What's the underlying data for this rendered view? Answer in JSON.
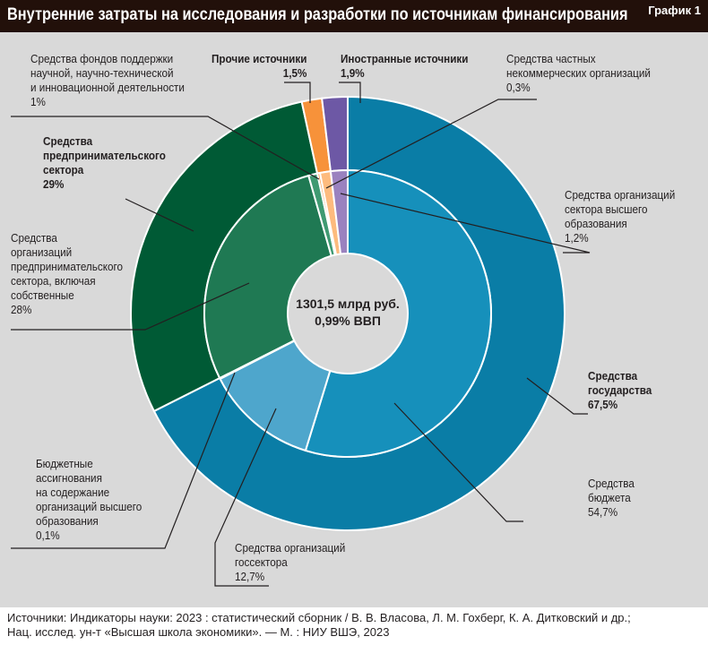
{
  "header": {
    "title": "Внутренние затраты на исследования и разработки по источникам финансирования",
    "graph_label": "График 1"
  },
  "chart_data": {
    "type": "pie",
    "center_label": [
      "1301,5 млрд руб.",
      "0,99% ВВП"
    ],
    "outer": [
      {
        "name": "Средства государства",
        "value": 67.5,
        "label": "67,5%",
        "color": "#0a7da6"
      },
      {
        "name": "Средства предпринимательского сектора",
        "value": 29,
        "label": "29%",
        "color": "#005a35"
      },
      {
        "name": "Прочие источники",
        "value": 1.5,
        "label": "1,5%",
        "color": "#f7923a"
      },
      {
        "name": "Иностранные источники",
        "value": 1.9,
        "label": "1,9%",
        "color": "#6d58a5"
      }
    ],
    "inner": [
      {
        "name": "Средства бюджета",
        "value": 54.7,
        "label": "54,7%",
        "color": "#1690bb"
      },
      {
        "name": "Средства организаций госсектора",
        "value": 12.7,
        "label": "12,7%",
        "color": "#4ea6cc"
      },
      {
        "name": "Бюджетные ассигнования на содержание организаций высшего образования",
        "value": 0.1,
        "label": "0,1%",
        "color": "#7fc0dc"
      },
      {
        "name": "Средства организаций предпринимательского сектора, включая собственные",
        "value": 28,
        "label": "28%",
        "color": "#1f7953"
      },
      {
        "name": "Средства фондов поддержки научной, научно-технической и инновационной деятельности",
        "value": 1,
        "label": "1%",
        "color": "#3f9a72"
      },
      {
        "name": "Средства частных некоммерческих организаций",
        "value": 0.3,
        "label": "0,3%",
        "color": "#f9a35a"
      },
      {
        "name": "Средства организаций сектора высшего образования",
        "value": 1.2,
        "label": "1,2%",
        "color": "#fdbb7e"
      },
      {
        "name": "Иностранные источники",
        "value": 1.9,
        "label": "",
        "color": "#9a82bf"
      }
    ]
  },
  "labels": {
    "funds": "Средства фондов поддержки\nнаучной, научно-технической\nи инновационной деятельности\n1%",
    "other": "Прочие источники\n1,5%",
    "foreign": "Иностранные источники\n1,9%",
    "nonprofit": "Средства частных\nнекоммерческих организаций\n0,3%",
    "business": "Средства\nпредпринимательского\nсектора\n29%",
    "higher_ed": "Средства организаций\nсектора высшего\nобразования\n1,2%",
    "business_own": "Средства\nорганизаций\nпредпринимательского\nсектора, включая\nсобственные\n28%",
    "state": "Средства\nгосударства\n67,5%",
    "budget": "Средства\nбюджета\n54,7%",
    "appropriations": "Бюджетные\nассигнования\nна содержание\nорганизаций высшего\nобразования\n0,1%",
    "gov_sector": "Средства организаций\nгоссектора\n12,7%"
  },
  "footer": "Источники: Индикаторы науки: 2023 : статистический сборник / В. В. Власова, Л. М. Гохберг, К. А. Дитковский и др.;\nНац. исслед. ун-т «Высшая школа экономики». — М. : НИУ ВШЭ, 2023"
}
